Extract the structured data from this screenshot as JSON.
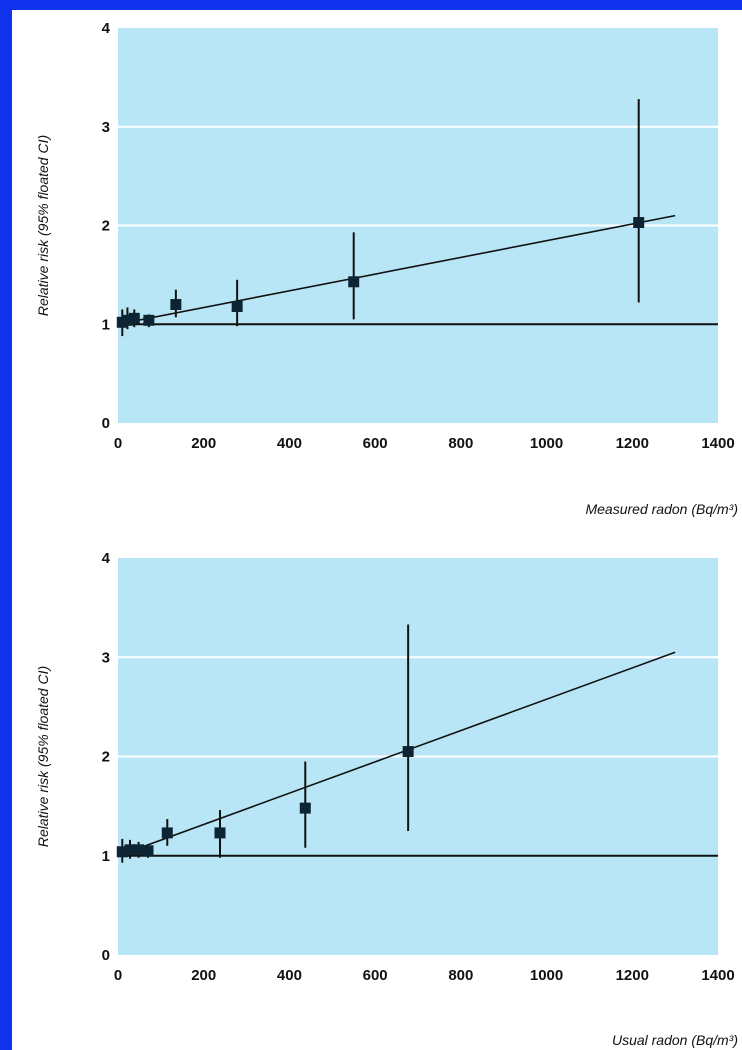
{
  "colors": {
    "frame": "#1133ee",
    "plot_background": "#b9e6f7",
    "gridline": "#ffffff",
    "marker": "#0d2433"
  },
  "chart_data": [
    {
      "type": "scatter",
      "xlabel": "Measured radon (Bq/m³)",
      "ylabel": "Relative risk (95% floated CI)",
      "xlim": [
        0,
        1400
      ],
      "ylim": [
        0,
        4
      ],
      "xticks": [
        0,
        200,
        400,
        600,
        800,
        1000,
        1200,
        1400
      ],
      "yticks": [
        0,
        1,
        2,
        3,
        4
      ],
      "grid": "horizontal",
      "reference_line_y": 1,
      "fit_line": [
        [
          0,
          1.0
        ],
        [
          1300,
          2.1
        ]
      ],
      "points": [
        {
          "x": 10,
          "y": 1.02,
          "lo": 0.88,
          "hi": 1.15
        },
        {
          "x": 22,
          "y": 1.04,
          "lo": 0.95,
          "hi": 1.17
        },
        {
          "x": 38,
          "y": 1.06,
          "lo": 0.97,
          "hi": 1.15
        },
        {
          "x": 72,
          "y": 1.04,
          "lo": 0.97,
          "hi": 1.1
        },
        {
          "x": 135,
          "y": 1.2,
          "lo": 1.07,
          "hi": 1.35
        },
        {
          "x": 278,
          "y": 1.18,
          "lo": 0.98,
          "hi": 1.45
        },
        {
          "x": 550,
          "y": 1.43,
          "lo": 1.05,
          "hi": 1.93
        },
        {
          "x": 1215,
          "y": 2.03,
          "lo": 1.22,
          "hi": 3.28
        }
      ]
    },
    {
      "type": "scatter",
      "xlabel": "Usual radon (Bq/m³)",
      "ylabel": "Relative risk (95% floated CI)",
      "xlim": [
        0,
        1400
      ],
      "ylim": [
        0,
        4
      ],
      "xticks": [
        0,
        200,
        400,
        600,
        800,
        1000,
        1200,
        1400
      ],
      "yticks": [
        0,
        1,
        2,
        3,
        4
      ],
      "grid": "horizontal",
      "reference_line_y": 1,
      "fit_line": [
        [
          0,
          1.0
        ],
        [
          1300,
          3.05
        ]
      ],
      "points": [
        {
          "x": 10,
          "y": 1.04,
          "lo": 0.93,
          "hi": 1.17
        },
        {
          "x": 28,
          "y": 1.06,
          "lo": 0.97,
          "hi": 1.16
        },
        {
          "x": 48,
          "y": 1.06,
          "lo": 0.98,
          "hi": 1.14
        },
        {
          "x": 70,
          "y": 1.05,
          "lo": 0.98,
          "hi": 1.11
        },
        {
          "x": 115,
          "y": 1.23,
          "lo": 1.1,
          "hi": 1.37
        },
        {
          "x": 238,
          "y": 1.23,
          "lo": 0.98,
          "hi": 1.46
        },
        {
          "x": 437,
          "y": 1.48,
          "lo": 1.08,
          "hi": 1.95
        },
        {
          "x": 677,
          "y": 2.05,
          "lo": 1.25,
          "hi": 3.33
        }
      ]
    }
  ]
}
